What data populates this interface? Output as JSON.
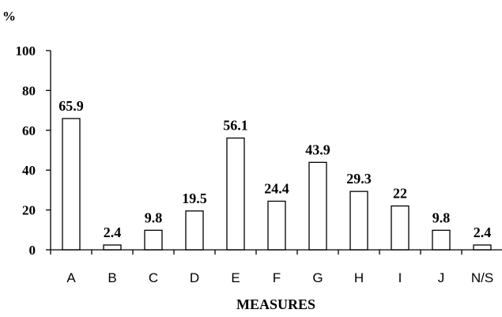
{
  "chart_data": {
    "type": "bar",
    "title": "",
    "ylabel": "%",
    "xlabel": "MEASURES",
    "ylim": [
      0,
      100
    ],
    "yticks": [
      0,
      20,
      40,
      60,
      80,
      100
    ],
    "categories": [
      "A",
      "B",
      "C",
      "D",
      "E",
      "F",
      "G",
      "H",
      "I",
      "J",
      "N/S"
    ],
    "values": [
      65.9,
      2.4,
      9.8,
      19.5,
      56.1,
      24.4,
      43.9,
      29.3,
      22,
      9.8,
      2.4
    ],
    "data_labels": [
      "65.9",
      "2.4",
      "9.8",
      "19.5",
      "56.1",
      "24.4",
      "43.9",
      "29.3",
      "22",
      "9.8",
      "2.4"
    ],
    "grid": false,
    "legend": "none",
    "colors": {
      "bar_fill": "#ffffff",
      "bar_stroke": "#000000",
      "axis": "#000000",
      "text": "#000000"
    }
  }
}
